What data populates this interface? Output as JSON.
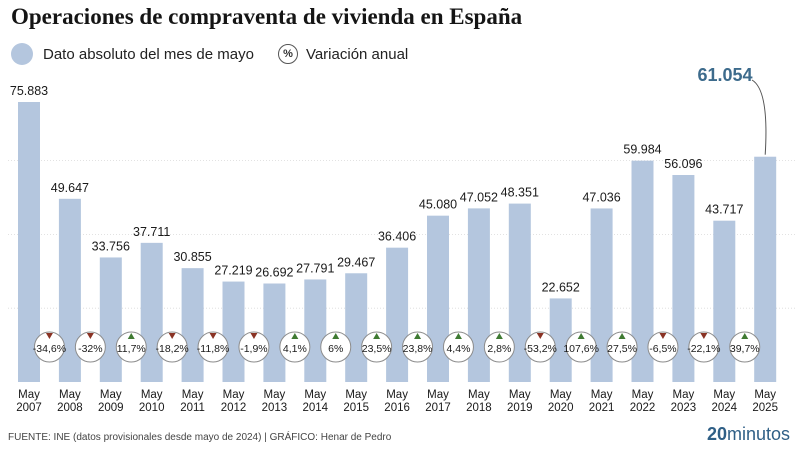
{
  "title": "Operaciones de compraventa de vivienda en España",
  "legend": {
    "absolute_label": "Dato absoluto del mes de mayo",
    "variation_symbol": "%",
    "variation_label": "Variación anual"
  },
  "colors": {
    "bar": "#b4c6de",
    "up": "#3f7a32",
    "down": "#8a3324",
    "highlight": "#3d6b8c"
  },
  "highlight_label": "61.054",
  "footer": {
    "source": "FUENTE: INE (datos provisionales desde mayo de 2024)  |  GRÁFICO: Henar de Pedro",
    "brand_number": "20",
    "brand_word": "minutos"
  },
  "chart_data": {
    "type": "bar",
    "title": "Operaciones de compraventa de vivienda en España",
    "categories": [
      "May 2007",
      "May 2008",
      "May 2009",
      "May 2010",
      "May 2011",
      "May 2012",
      "May 2013",
      "May 2014",
      "May 2015",
      "May 2016",
      "May 2017",
      "May 2018",
      "May 2019",
      "May 2020",
      "May 2021",
      "May 2022",
      "May 2023",
      "May 2024",
      "May 2025"
    ],
    "tick_month": [
      "May",
      "May",
      "May",
      "May",
      "May",
      "May",
      "May",
      "May",
      "May",
      "May",
      "May",
      "May",
      "May",
      "May",
      "May",
      "May",
      "May",
      "May",
      "May"
    ],
    "tick_year": [
      "2007",
      "2008",
      "2009",
      "2010",
      "2011",
      "2012",
      "2013",
      "2014",
      "2015",
      "2016",
      "2017",
      "2018",
      "2019",
      "2020",
      "2021",
      "2022",
      "2023",
      "2024",
      "2025"
    ],
    "values": [
      75883,
      49647,
      33756,
      37711,
      30855,
      27219,
      26692,
      27791,
      29467,
      36406,
      45080,
      47052,
      48351,
      22652,
      47036,
      59984,
      56096,
      43717,
      61054
    ],
    "value_labels": [
      "75.883",
      "49.647",
      "33.756",
      "37.711",
      "30.855",
      "27.219",
      "26.692",
      "27.791",
      "29.467",
      "36.406",
      "45.080",
      "47.052",
      "48.351",
      "22.652",
      "47.036",
      "59.984",
      "56.096",
      "43.717",
      "61.054"
    ],
    "variation": [
      -34.6,
      -32,
      11.7,
      -18.2,
      -11.8,
      -1.9,
      4.1,
      6,
      23.5,
      23.8,
      4.4,
      2.8,
      -53.2,
      107.6,
      27.5,
      -6.5,
      -22.1,
      39.7
    ],
    "variation_labels": [
      "-34,6%",
      "-32%",
      "11,7%",
      "-18,2%",
      "-11,8%",
      "-1,9%",
      "4,1%",
      "6%",
      "23,5%",
      "23,8%",
      "4,4%",
      "2,8%",
      "-53,2%",
      "107,6%",
      "27,5%",
      "-6,5%",
      "-22,1%",
      "39,7%"
    ],
    "ylim": [
      0,
      80000
    ],
    "grid": true,
    "legend": "top-left"
  }
}
